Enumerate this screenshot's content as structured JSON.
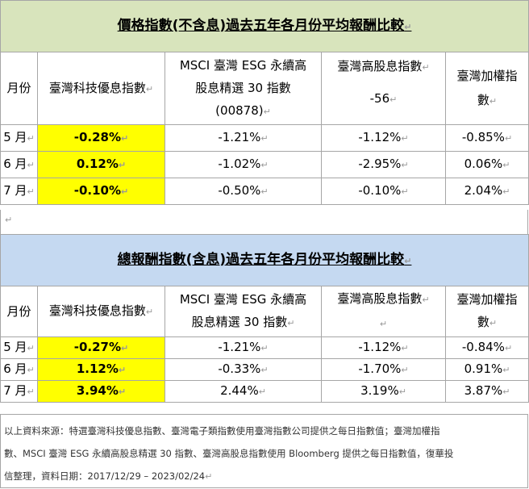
{
  "table1": {
    "title": "價格指數(不含息)過去五年各月份平均報酬比較",
    "headers": {
      "month": "月份",
      "tech": "臺灣科技優息指數",
      "msci": "MSCI 臺灣 ESG 永續高股息精選 30 指數(00878)",
      "msci_line1": "MSCI 臺灣 ESG 永續高",
      "msci_line2": "股息精選 30 指數",
      "msci_line3": "(00878)",
      "high_div_line1": "臺灣高股息指數",
      "high_div_line2": "-56",
      "taiex_line1": "臺灣加權指",
      "taiex_line2": "數"
    },
    "rows": [
      {
        "month": "5 月",
        "tech": "-0.28%",
        "msci": "-1.21%",
        "high_div": "-1.12%",
        "taiex": "-0.85%"
      },
      {
        "month": "6 月",
        "tech": "0.12%",
        "msci": "-1.02%",
        "high_div": "-2.95%",
        "taiex": "0.06%"
      },
      {
        "month": "7 月",
        "tech": "-0.10%",
        "msci": "-0.50%",
        "high_div": "-0.10%",
        "taiex": "2.04%"
      }
    ]
  },
  "table2": {
    "title": "總報酬指數(含息)過去五年各月份平均報酬比較",
    "headers": {
      "month": "月份",
      "tech": "臺灣科技優息指數",
      "msci_line1": "MSCI 臺灣 ESG 永續高",
      "msci_line2": "股息精選 30 指數",
      "high_div": "臺灣高股息指數",
      "taiex_line1": "臺灣加權指",
      "taiex_line2": "數"
    },
    "rows": [
      {
        "month": "5 月",
        "tech": "-0.27%",
        "msci": "-1.21%",
        "high_div": "-1.12%",
        "taiex": "-0.84%"
      },
      {
        "month": "6 月",
        "tech": "1.12%",
        "msci": "-0.33%",
        "high_div": "-1.70%",
        "taiex": "0.91%"
      },
      {
        "month": "7 月",
        "tech": "3.94%",
        "msci": "2.44%",
        "high_div": "3.19%",
        "taiex": "3.87%"
      }
    ]
  },
  "footnote": {
    "line1": "以上資料來源：特選臺灣科技優息指數、臺灣電子類指數使用臺灣指數公司提供之每日指數值；臺灣加權指",
    "line2": "數、MSCI 臺灣 ESG 永續高股息精選 30 指數、臺灣高股息指數使用 Bloomberg 提供之每日指數值，復華投",
    "line3": "信整理，資料日期：2017/12/29 – 2023/02/24"
  },
  "colors": {
    "table1_title_bg": "#d8e4bc",
    "table2_title_bg": "#c5d9f1",
    "highlight": "#ffff00",
    "border": "#a6a6a6"
  }
}
